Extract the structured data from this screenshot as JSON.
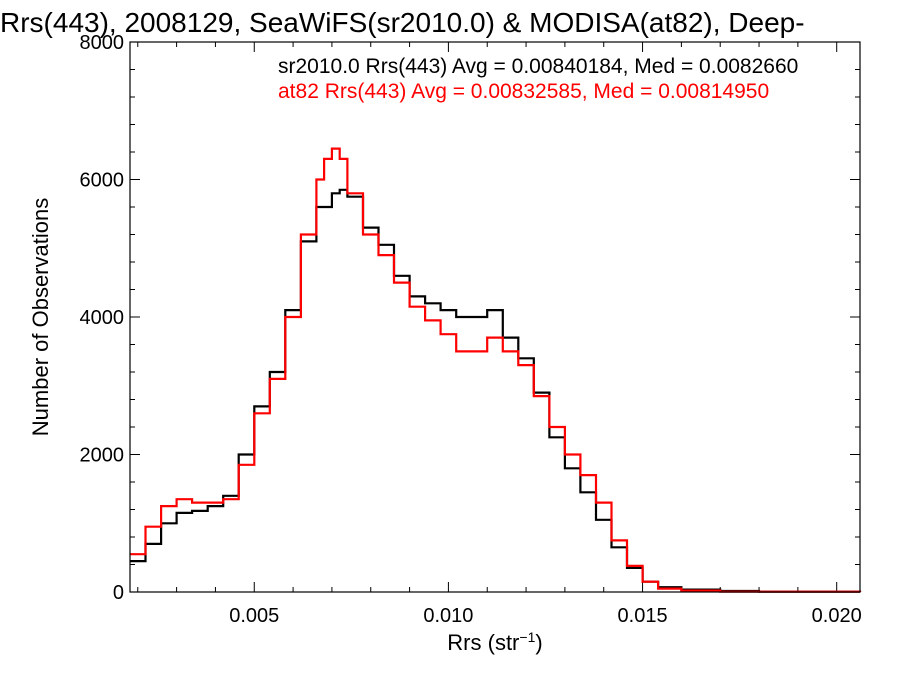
{
  "chart_data": {
    "type": "line",
    "title": "Rrs(443), 2008129, SeaWiFS(sr2010.0) & MODISA(at82), Deep-",
    "xlabel": "Rrs (str",
    "xlabel_sup": "−1",
    "xlabel_tail": ")",
    "ylabel": "Number of Observations",
    "xlim": [
      0.0018,
      0.0206
    ],
    "ylim": [
      0,
      8000
    ],
    "x_ticks": [
      {
        "value": 0.005,
        "label": "0.005"
      },
      {
        "value": 0.01,
        "label": "0.010"
      },
      {
        "value": 0.015,
        "label": "0.015"
      },
      {
        "value": 0.02,
        "label": "0.020"
      }
    ],
    "y_ticks": [
      {
        "value": 0,
        "label": "0"
      },
      {
        "value": 2000,
        "label": "2000"
      },
      {
        "value": 4000,
        "label": "4000"
      },
      {
        "value": 6000,
        "label": "6000"
      },
      {
        "value": 8000,
        "label": "8000"
      }
    ],
    "grid": false,
    "step": "histogram",
    "annotations": [
      {
        "text": "sr2010.0 Rrs(443) Avg = 0.00840184, Med = 0.0082660",
        "color": "#000000"
      },
      {
        "text": "at82 Rrs(443) Avg = 0.00832585, Med = 0.00814950",
        "color": "#ff0000"
      }
    ],
    "series": [
      {
        "color": "#000000",
        "points": [
          [
            0.0018,
            450
          ],
          [
            0.0022,
            700
          ],
          [
            0.0026,
            1000
          ],
          [
            0.003,
            1150
          ],
          [
            0.0034,
            1180
          ],
          [
            0.0038,
            1250
          ],
          [
            0.0042,
            1400
          ],
          [
            0.0046,
            2000
          ],
          [
            0.005,
            2700
          ],
          [
            0.0054,
            3200
          ],
          [
            0.0058,
            4100
          ],
          [
            0.0062,
            5100
          ],
          [
            0.0066,
            5600
          ],
          [
            0.007,
            5800
          ],
          [
            0.0072,
            5850
          ],
          [
            0.0074,
            5750
          ],
          [
            0.0078,
            5300
          ],
          [
            0.0082,
            5050
          ],
          [
            0.0086,
            4600
          ],
          [
            0.009,
            4300
          ],
          [
            0.0094,
            4200
          ],
          [
            0.0098,
            4100
          ],
          [
            0.0102,
            4000
          ],
          [
            0.0106,
            4000
          ],
          [
            0.011,
            4100
          ],
          [
            0.0114,
            3700
          ],
          [
            0.0118,
            3400
          ],
          [
            0.0122,
            2900
          ],
          [
            0.0126,
            2250
          ],
          [
            0.013,
            1800
          ],
          [
            0.0134,
            1450
          ],
          [
            0.0138,
            1050
          ],
          [
            0.0142,
            650
          ],
          [
            0.0146,
            350
          ],
          [
            0.015,
            150
          ],
          [
            0.0154,
            70
          ],
          [
            0.016,
            35
          ],
          [
            0.017,
            15
          ],
          [
            0.018,
            5
          ],
          [
            0.0206,
            0
          ]
        ]
      },
      {
        "color": "#ff0000",
        "points": [
          [
            0.0018,
            550
          ],
          [
            0.0022,
            950
          ],
          [
            0.0026,
            1250
          ],
          [
            0.003,
            1350
          ],
          [
            0.0034,
            1300
          ],
          [
            0.0038,
            1300
          ],
          [
            0.0042,
            1350
          ],
          [
            0.0046,
            1850
          ],
          [
            0.005,
            2600
          ],
          [
            0.0054,
            3100
          ],
          [
            0.0058,
            4000
          ],
          [
            0.0062,
            5200
          ],
          [
            0.0066,
            6000
          ],
          [
            0.0068,
            6300
          ],
          [
            0.007,
            6450
          ],
          [
            0.0072,
            6300
          ],
          [
            0.0074,
            5800
          ],
          [
            0.0078,
            5200
          ],
          [
            0.0082,
            4900
          ],
          [
            0.0086,
            4500
          ],
          [
            0.009,
            4150
          ],
          [
            0.0094,
            3950
          ],
          [
            0.0098,
            3750
          ],
          [
            0.0102,
            3500
          ],
          [
            0.0106,
            3500
          ],
          [
            0.011,
            3700
          ],
          [
            0.0114,
            3500
          ],
          [
            0.0118,
            3300
          ],
          [
            0.0122,
            2850
          ],
          [
            0.0126,
            2400
          ],
          [
            0.013,
            2000
          ],
          [
            0.0134,
            1700
          ],
          [
            0.0138,
            1300
          ],
          [
            0.0142,
            750
          ],
          [
            0.0146,
            380
          ],
          [
            0.015,
            150
          ],
          [
            0.0154,
            50
          ],
          [
            0.016,
            20
          ],
          [
            0.017,
            5
          ],
          [
            0.0206,
            0
          ]
        ]
      }
    ]
  }
}
